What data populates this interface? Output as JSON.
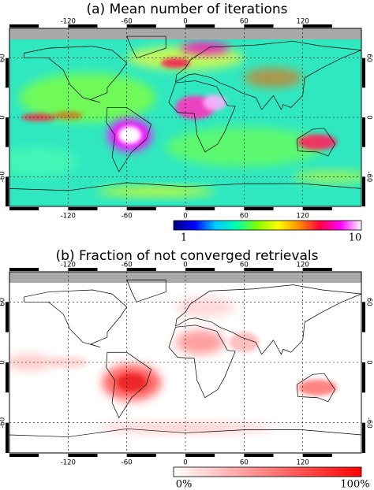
{
  "panels": [
    {
      "title": "(a) Mean number of iterations",
      "xlim": [
        -180,
        180
      ],
      "ylim": [
        -90,
        90
      ],
      "xticks": [
        -120,
        -60,
        0,
        60,
        120
      ],
      "yticks": [
        60,
        0,
        -60
      ],
      "colorbar": {
        "labels": [
          "1",
          "10"
        ],
        "colors": [
          "#00007f",
          "#0000ff",
          "#00c8ff",
          "#00ffb0",
          "#80ff00",
          "#ffff00",
          "#ff9000",
          "#ff0040",
          "#ff00ff",
          "#ffffff"
        ]
      }
    },
    {
      "title": "(b) Fraction of not converged retrievals",
      "xlim": [
        -180,
        180
      ],
      "ylim": [
        -90,
        90
      ],
      "xticks": [
        -120,
        -60,
        0,
        60,
        120
      ],
      "yticks": [
        60,
        0,
        -60
      ],
      "colorbar": {
        "labels": [
          "0%",
          "100%"
        ],
        "colors": [
          "#ffffff",
          "#ff0000"
        ]
      }
    }
  ]
}
